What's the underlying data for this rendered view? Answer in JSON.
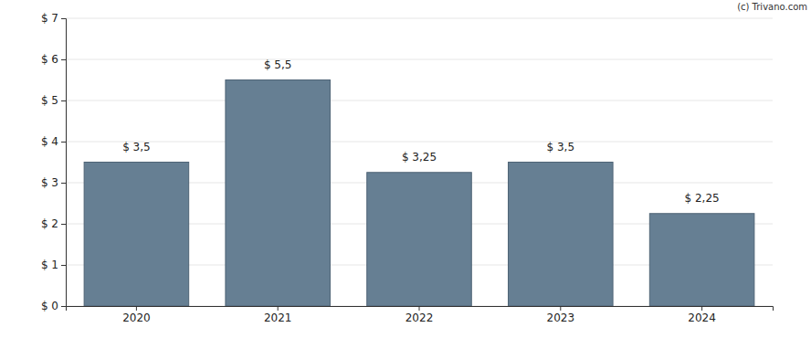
{
  "chart_data": {
    "type": "bar",
    "categories": [
      "2020",
      "2021",
      "2022",
      "2023",
      "2024"
    ],
    "values": [
      3.5,
      5.5,
      3.25,
      3.5,
      2.25
    ],
    "value_labels": [
      "$ 3,5",
      "$ 5,5",
      "$ 3,25",
      "$ 3,5",
      "$ 2,25"
    ],
    "color": "#667f93",
    "ylim": [
      0,
      7
    ],
    "yticks": [
      {
        "value": 0,
        "label": "$ 0"
      },
      {
        "value": 1,
        "label": "$ 1"
      },
      {
        "value": 2,
        "label": "$ 2"
      },
      {
        "value": 3,
        "label": "$ 3"
      },
      {
        "value": 4,
        "label": "$ 4"
      },
      {
        "value": 5,
        "label": "$ 5"
      },
      {
        "value": 6,
        "label": "$ 6"
      },
      {
        "value": 7,
        "label": "$ 7"
      }
    ],
    "grid": true,
    "data_labels": true,
    "annotations": [
      "(c) Trivano.com"
    ]
  }
}
